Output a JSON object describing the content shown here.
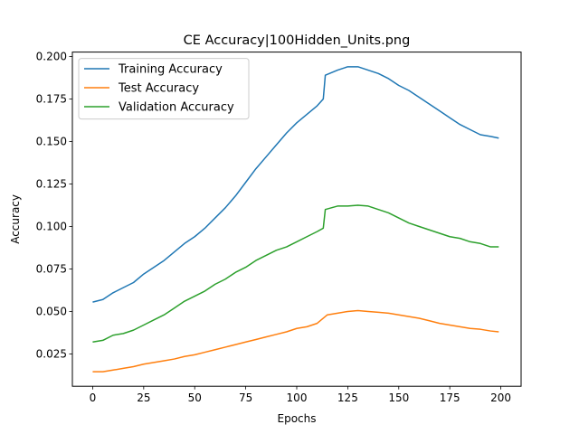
{
  "chart_data": {
    "type": "line",
    "title": "CE Accuracy|100Hidden_Units.png",
    "xlabel": "Epochs",
    "ylabel": "Accuracy",
    "xlim": [
      -9.95,
      209.95
    ],
    "ylim": [
      0.00597,
      0.20263
    ],
    "xticks": [
      0,
      25,
      50,
      75,
      100,
      125,
      150,
      175,
      200
    ],
    "yticks": [
      0.025,
      0.05,
      0.075,
      0.1,
      0.125,
      0.15,
      0.175,
      0.2
    ],
    "ytick_labels": [
      "0.025",
      "0.050",
      "0.075",
      "0.100",
      "0.125",
      "0.150",
      "0.175",
      "0.200"
    ],
    "grid": false,
    "legend_position": "upper-left",
    "series": [
      {
        "name": "Training Accuracy",
        "color": "#1f77b4",
        "x": [
          0,
          5,
          10,
          15,
          20,
          25,
          30,
          35,
          40,
          45,
          50,
          55,
          60,
          65,
          70,
          75,
          80,
          85,
          90,
          95,
          100,
          105,
          110,
          113,
          114,
          120,
          125,
          130,
          135,
          140,
          145,
          150,
          155,
          160,
          165,
          170,
          175,
          180,
          185,
          190,
          195,
          199
        ],
        "y": [
          0.0555,
          0.057,
          0.061,
          0.064,
          0.067,
          0.072,
          0.076,
          0.08,
          0.085,
          0.09,
          0.094,
          0.099,
          0.105,
          0.111,
          0.118,
          0.126,
          0.134,
          0.141,
          0.148,
          0.155,
          0.161,
          0.166,
          0.171,
          0.175,
          0.189,
          0.192,
          0.194,
          0.194,
          0.192,
          0.19,
          0.187,
          0.183,
          0.18,
          0.176,
          0.172,
          0.168,
          0.164,
          0.16,
          0.157,
          0.154,
          0.153,
          0.152
        ]
      },
      {
        "name": "Test Accuracy",
        "color": "#ff7f0e",
        "x": [
          0,
          5,
          10,
          15,
          20,
          25,
          30,
          35,
          40,
          45,
          50,
          55,
          60,
          65,
          70,
          75,
          80,
          85,
          90,
          95,
          100,
          105,
          110,
          113,
          115,
          120,
          125,
          130,
          135,
          140,
          145,
          150,
          155,
          160,
          165,
          170,
          175,
          180,
          185,
          190,
          195,
          199
        ],
        "y": [
          0.0145,
          0.0145,
          0.0155,
          0.0165,
          0.0175,
          0.019,
          0.02,
          0.021,
          0.022,
          0.0235,
          0.0245,
          0.026,
          0.0275,
          0.029,
          0.0305,
          0.032,
          0.0335,
          0.035,
          0.0365,
          0.038,
          0.04,
          0.041,
          0.043,
          0.046,
          0.048,
          0.049,
          0.05,
          0.0505,
          0.05,
          0.0495,
          0.049,
          0.048,
          0.047,
          0.046,
          0.0445,
          0.043,
          0.042,
          0.041,
          0.04,
          0.0395,
          0.0385,
          0.038
        ]
      },
      {
        "name": "Validation Accuracy",
        "color": "#2ca02c",
        "x": [
          0,
          5,
          10,
          15,
          20,
          25,
          30,
          35,
          40,
          45,
          50,
          55,
          60,
          65,
          70,
          75,
          80,
          85,
          90,
          95,
          100,
          105,
          110,
          113,
          114,
          120,
          125,
          130,
          135,
          140,
          145,
          150,
          155,
          160,
          165,
          170,
          175,
          180,
          185,
          190,
          195,
          199
        ],
        "y": [
          0.032,
          0.033,
          0.036,
          0.037,
          0.039,
          0.042,
          0.045,
          0.048,
          0.052,
          0.056,
          0.059,
          0.062,
          0.066,
          0.069,
          0.073,
          0.076,
          0.08,
          0.083,
          0.086,
          0.088,
          0.091,
          0.094,
          0.097,
          0.099,
          0.11,
          0.112,
          0.112,
          0.1125,
          0.112,
          0.11,
          0.108,
          0.105,
          0.102,
          0.1,
          0.098,
          0.096,
          0.094,
          0.093,
          0.091,
          0.09,
          0.088,
          0.088
        ]
      }
    ]
  }
}
